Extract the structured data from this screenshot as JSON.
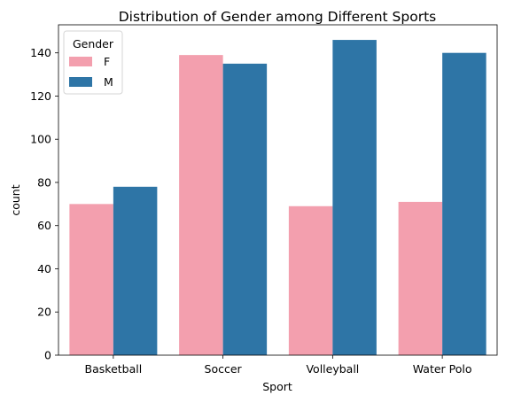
{
  "chart_data": {
    "type": "bar",
    "title": "Distribution of Gender among Different Sports",
    "xlabel": "Sport",
    "ylabel": "count",
    "categories": [
      "Basketball",
      "Soccer",
      "Volleyball",
      "Water Polo"
    ],
    "series": [
      {
        "name": "F",
        "values": [
          70,
          139,
          69,
          71
        ],
        "color": "#f39fae"
      },
      {
        "name": "M",
        "values": [
          78,
          135,
          146,
          140
        ],
        "color": "#2e75a6"
      }
    ],
    "ylim": [
      0,
      153
    ],
    "yticks": [
      0,
      20,
      40,
      60,
      80,
      100,
      120,
      140
    ],
    "yticklabels": [
      "0",
      "20",
      "40",
      "60",
      "80",
      "100",
      "120",
      "140"
    ],
    "grid": false,
    "legend": {
      "title": "Gender",
      "placement": "top-left"
    }
  }
}
